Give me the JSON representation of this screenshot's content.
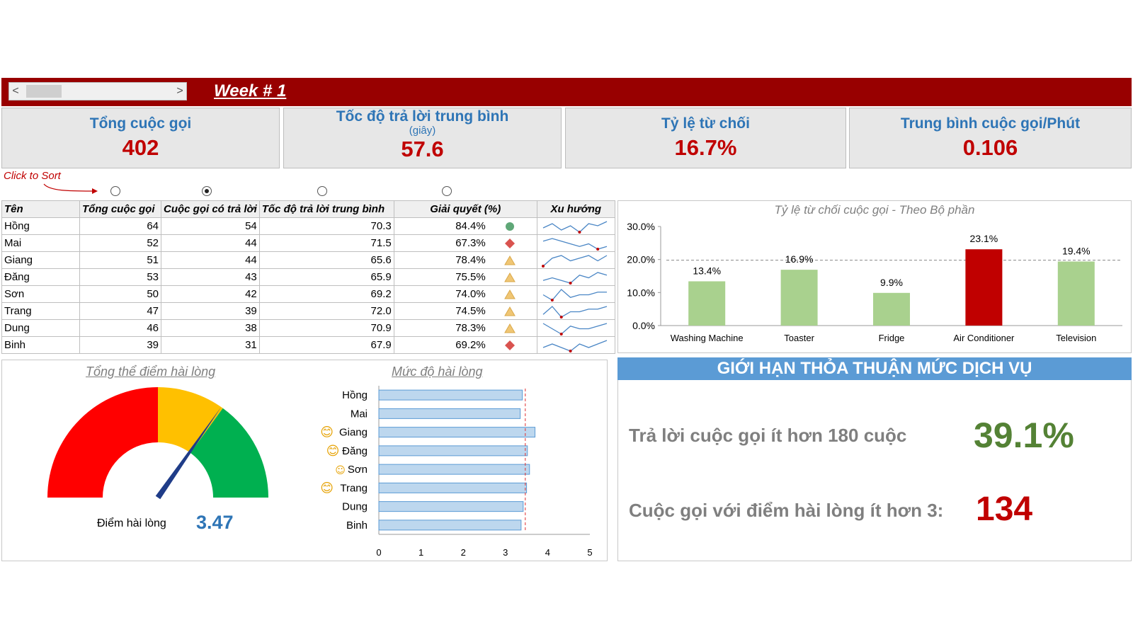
{
  "header": {
    "week_label": "Week # 1",
    "scroll_left": "<",
    "scroll_right": ">"
  },
  "kpis": [
    {
      "title": "Tổng cuộc gọi",
      "subtitle": "",
      "value": "402"
    },
    {
      "title": "Tốc độ trả lời trung bình",
      "subtitle": "(giây)",
      "value": "57.6"
    },
    {
      "title": "Tỷ lệ từ chối",
      "subtitle": "",
      "value": "16.7%"
    },
    {
      "title": "Trung bình cuộc gọi/Phút",
      "subtitle": "",
      "value": "0.106"
    }
  ],
  "sort": {
    "note": "Click to Sort",
    "options_selected_index": 1
  },
  "table": {
    "headers": [
      "Tên",
      "Tổng cuộc gọi",
      "Cuộc gọi có trả lời",
      "Tốc độ trả lời trung bình",
      "Giải quyết (%)",
      "Xu hướng"
    ],
    "rows": [
      {
        "name": "Hồng",
        "total": "64",
        "answered": "54",
        "speed": "70.3",
        "resolved": "84.4%",
        "status": "good",
        "trend": [
          4,
          6,
          3,
          5,
          2,
          6,
          5,
          7
        ]
      },
      {
        "name": "Mai",
        "total": "52",
        "answered": "44",
        "speed": "71.5",
        "resolved": "67.3%",
        "status": "bad",
        "trend": [
          6,
          7,
          6,
          5,
          4,
          5,
          3,
          4
        ]
      },
      {
        "name": "Giang",
        "total": "51",
        "answered": "44",
        "speed": "65.6",
        "resolved": "78.4%",
        "status": "neutral",
        "trend": [
          2,
          5,
          6,
          4,
          5,
          6,
          4,
          6
        ]
      },
      {
        "name": "Đăng",
        "total": "53",
        "answered": "43",
        "speed": "65.9",
        "resolved": "75.5%",
        "status": "neutral",
        "trend": [
          3,
          4,
          3,
          2,
          5,
          4,
          6,
          5
        ]
      },
      {
        "name": "Sơn",
        "total": "50",
        "answered": "42",
        "speed": "69.2",
        "resolved": "74.0%",
        "status": "neutral",
        "trend": [
          4,
          2,
          6,
          3,
          4,
          4,
          5,
          5
        ]
      },
      {
        "name": "Trang",
        "total": "47",
        "answered": "39",
        "speed": "72.0",
        "resolved": "74.5%",
        "status": "neutral",
        "trend": [
          3,
          6,
          2,
          4,
          4,
          5,
          5,
          6
        ]
      },
      {
        "name": "Dung",
        "total": "46",
        "answered": "38",
        "speed": "70.9",
        "resolved": "78.3%",
        "status": "neutral",
        "trend": [
          6,
          4,
          2,
          5,
          4,
          4,
          5,
          6
        ]
      },
      {
        "name": "Binh",
        "total": "39",
        "answered": "31",
        "speed": "67.9",
        "resolved": "69.2%",
        "status": "bad",
        "trend": [
          4,
          5,
          4,
          3,
          5,
          4,
          5,
          6
        ]
      }
    ]
  },
  "status_colors": {
    "good": "#5fa777",
    "bad": "#d9534f",
    "neutral": "#f0c674"
  },
  "rejection_chart": {
    "title": "Tỷ lệ từ chối cuộc gọi - Theo Bộ phần",
    "bar_color": "#a9d18e",
    "highlight_color": "#c00000"
  },
  "gauge": {
    "title": "Tổng thể điểm hài lòng",
    "label": "Điểm hài lòng",
    "value": "3.47",
    "score": 3.47,
    "max": 5,
    "colors": [
      "#ff0000",
      "#ffc000",
      "#00b050"
    ]
  },
  "satisfaction": {
    "title": "Mức độ hài lòng",
    "ticks": [
      "0",
      "1",
      "2",
      "3",
      "4",
      "5"
    ],
    "average": 3.47,
    "bar_color": "#bdd7ee",
    "smiley": "😊",
    "neutral_face": "☺"
  },
  "sla": {
    "heading": "GIỚI HẠN THỎA THUẬN MỨC DỊCH VỤ",
    "row1_label": "Trả lời cuộc gọi ít hơn 180 cuộc",
    "row1_value": "39.1%",
    "row2_label": "Cuộc gọi với điểm hài lòng ít hơn 3:",
    "row2_value": "134"
  },
  "chart_data": [
    {
      "type": "bar",
      "title": "Tỷ lệ từ chối cuộc gọi - Theo Bộ phần",
      "categories": [
        "Washing Machine",
        "Toaster",
        "Fridge",
        "Air Conditioner",
        "Television"
      ],
      "values": [
        13.4,
        16.9,
        9.9,
        23.1,
        19.4
      ],
      "data_labels": [
        "13.4%",
        "16.9%",
        "9.9%",
        "23.1%",
        "19.4%"
      ],
      "y_ticks": [
        "0.0%",
        "10.0%",
        "20.0%",
        "30.0%"
      ],
      "ylim": [
        0,
        30
      ],
      "reference_line": 19.8,
      "highlight_index": 3
    },
    {
      "type": "bar",
      "title": "Mức độ hài lòng",
      "orientation": "horizontal",
      "categories": [
        "Hồng",
        "Mai",
        "Giang",
        "Đăng",
        "Sơn",
        "Trang",
        "Dung",
        "Binh"
      ],
      "values": [
        3.4,
        3.35,
        3.7,
        3.52,
        3.57,
        3.5,
        3.42,
        3.37
      ],
      "smiley_index": [
        2,
        3,
        5
      ],
      "neutral_index": [
        4
      ],
      "xlim": [
        0,
        5
      ],
      "reference_line": 3.47
    }
  ]
}
